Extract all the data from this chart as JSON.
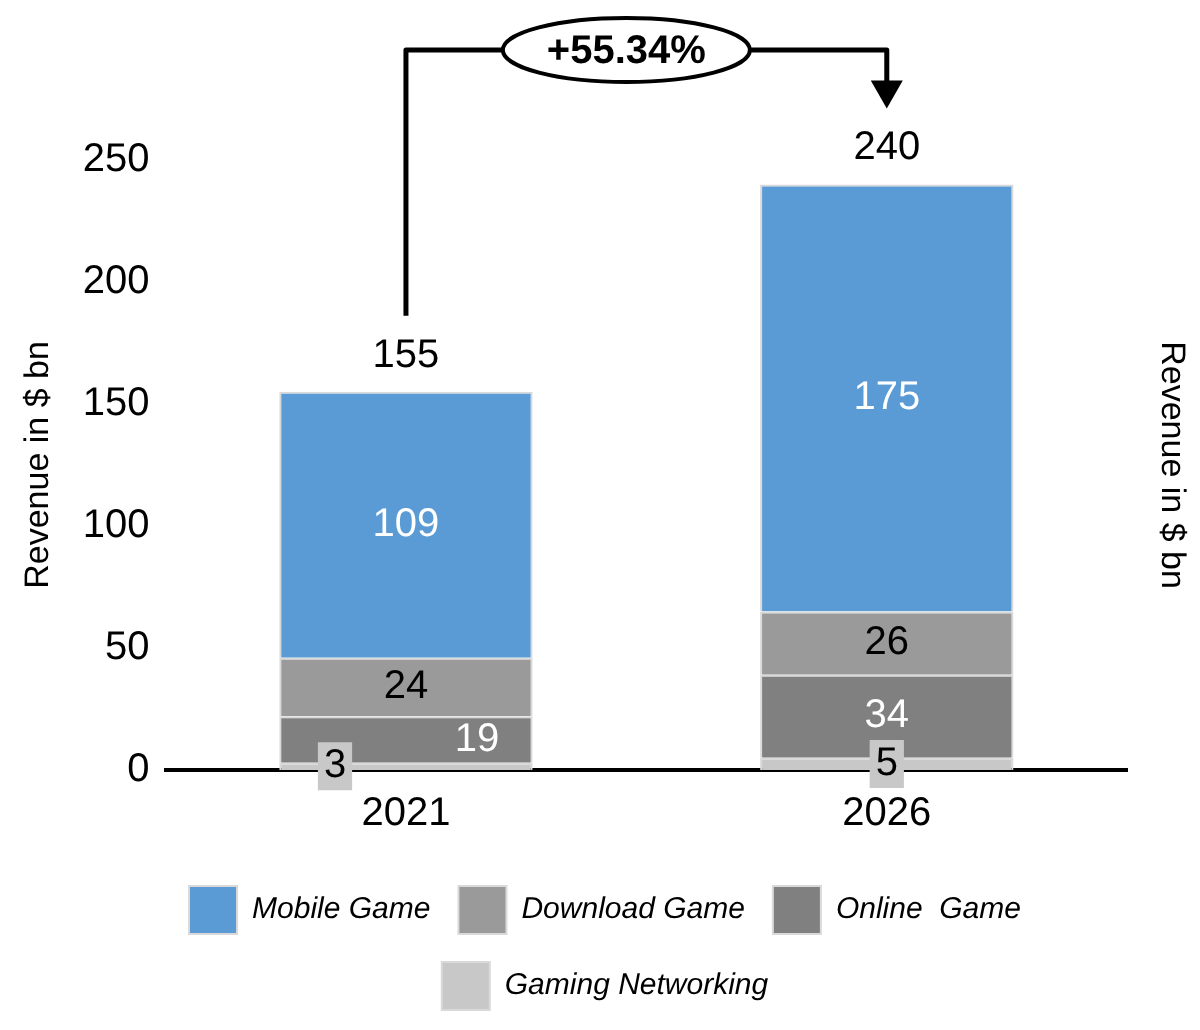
{
  "chart_data": {
    "type": "bar",
    "stacked": true,
    "categories": [
      "2021",
      "2026"
    ],
    "series": [
      {
        "name": "Gaming Networking",
        "color": "#c8c8c8",
        "values": [
          3,
          5
        ]
      },
      {
        "name": "Online  Game",
        "color": "#808080",
        "values": [
          19,
          34
        ]
      },
      {
        "name": "Download Game",
        "color": "#9a9a9a",
        "values": [
          24,
          26
        ]
      },
      {
        "name": "Mobile Game",
        "color": "#5b9bd5",
        "values": [
          109,
          175
        ]
      }
    ],
    "ylabel": "Revenue in $ bn",
    "y2label": "Revenue in $ bn",
    "ylim": [
      0,
      250
    ],
    "yticks": [
      0,
      50,
      100,
      150,
      200,
      250
    ],
    "data_labels": true,
    "totals": [
      "155",
      "240"
    ],
    "annotations": [
      "+55.34%"
    ],
    "grid": false,
    "legend": "bottom"
  }
}
